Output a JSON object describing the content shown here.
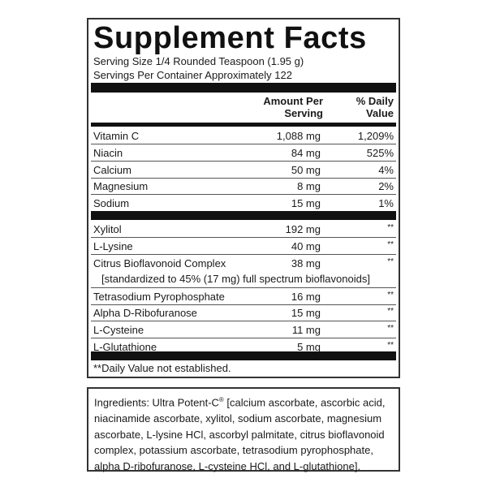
{
  "title": "Supplement Facts",
  "serving_size": "Serving Size 1/4 Rounded Teaspoon (1.95 g)",
  "servings_per_container": "Servings Per Container Approximately 122",
  "header": {
    "amount_line1": "Amount Per",
    "amount_line2": "Serving",
    "dv_line1": "% Daily",
    "dv_line2": "Value"
  },
  "nutrients": [
    {
      "name": "Vitamin C",
      "amount": "1,088 mg",
      "dv": "1,209%"
    },
    {
      "name": "Niacin",
      "amount": "84 mg",
      "dv": "525%"
    },
    {
      "name": "Calcium",
      "amount": "50 mg",
      "dv": "4%"
    },
    {
      "name": "Magnesium",
      "amount": "8 mg",
      "dv": "2%"
    },
    {
      "name": "Sodium",
      "amount": "15 mg",
      "dv": "1%"
    }
  ],
  "other": [
    {
      "name": "Xylitol",
      "amount": "192 mg",
      "dv": "**"
    },
    {
      "name": "L-Lysine",
      "amount": "40 mg",
      "dv": "**"
    },
    {
      "name": "Citrus Bioflavonoid Complex",
      "amount": "38 mg",
      "dv": "**",
      "note": "[standardized to 45% (17 mg) full spectrum bioflavonoids]"
    },
    {
      "name": "Tetrasodium Pyrophosphate",
      "amount": "16 mg",
      "dv": "**"
    },
    {
      "name": "Alpha D-Ribofuranose",
      "amount": "15 mg",
      "dv": "**"
    },
    {
      "name": "L-Cysteine",
      "amount": "11 mg",
      "dv": "**"
    },
    {
      "name": "L-Glutathione",
      "amount": "5 mg",
      "dv": "**"
    }
  ],
  "footnote": "**Daily Value not established.",
  "ingredients": {
    "prefix": "Ingredients: Ultra Potent-C",
    "mark": "®",
    "text": " [calcium ascorbate, ascorbic acid, niacinamide ascorbate, xylitol, sodium ascorbate, magnesium ascorbate, L-lysine HCl, ascorbyl palmitate, citrus bioflavonoid complex, potassium ascorbate, tetrasodium pyrophosphate, alpha D-ribofuranose, L-cysteine HCl, and L-glutathione]."
  }
}
